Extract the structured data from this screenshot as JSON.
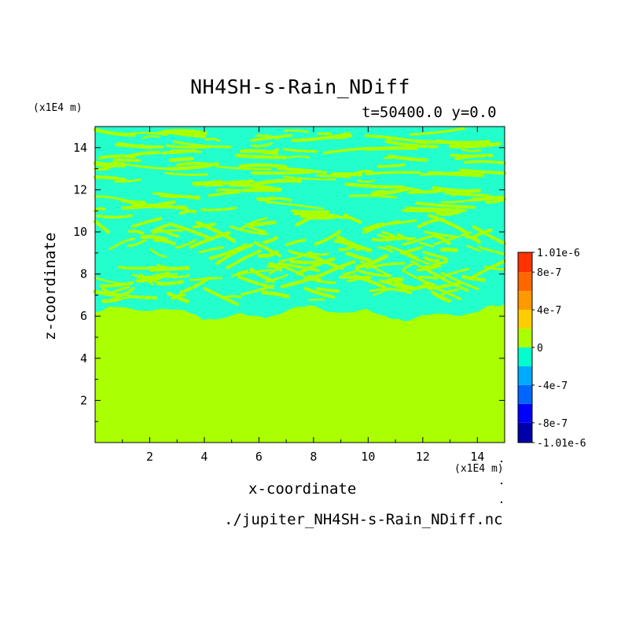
{
  "chart_data": {
    "type": "heatmap",
    "title": "NH4SH-s-Rain_NDiff",
    "subtitle": "t=50400.0 y=0.0",
    "xlabel": "x-coordinate",
    "ylabel": "z-coordinate",
    "x_unit": "(x1E4 m)",
    "y_unit": "(x1E4 m)",
    "xlim": [
      0,
      15
    ],
    "ylim": [
      0,
      15
    ],
    "x_ticks": [
      2,
      4,
      6,
      8,
      10,
      12,
      14
    ],
    "y_ticks": [
      2,
      4,
      6,
      8,
      10,
      12,
      14
    ],
    "colorbar": {
      "levels": [
        -1.01e-06,
        -8e-07,
        -6e-07,
        -4e-07,
        -2e-07,
        0,
        2e-07,
        4e-07,
        6e-07,
        8e-07,
        1.01e-06
      ],
      "labels": [
        "1.01e-6",
        "8e-7",
        "4e-7",
        "0",
        "-4e-7",
        "-8e-7",
        "-1.01e-6"
      ],
      "label_values": [
        1.01e-06,
        8e-07,
        4e-07,
        0,
        -4e-07,
        -8e-07,
        -1.01e-06
      ],
      "colors": [
        "#0000aa",
        "#0000ff",
        "#0066ff",
        "#00aaff",
        "#00ffcc",
        "#aaff00",
        "#ffcc00",
        "#ff9900",
        "#ff6600",
        "#ff3300"
      ]
    },
    "field_colors": {
      "zero": "#aaff00",
      "negative": "#22ffcc"
    },
    "layer_top_z": 6.3
  },
  "footer": {
    "filename": "./jupiter_NH4SH-s-Rain_NDiff.nc"
  }
}
